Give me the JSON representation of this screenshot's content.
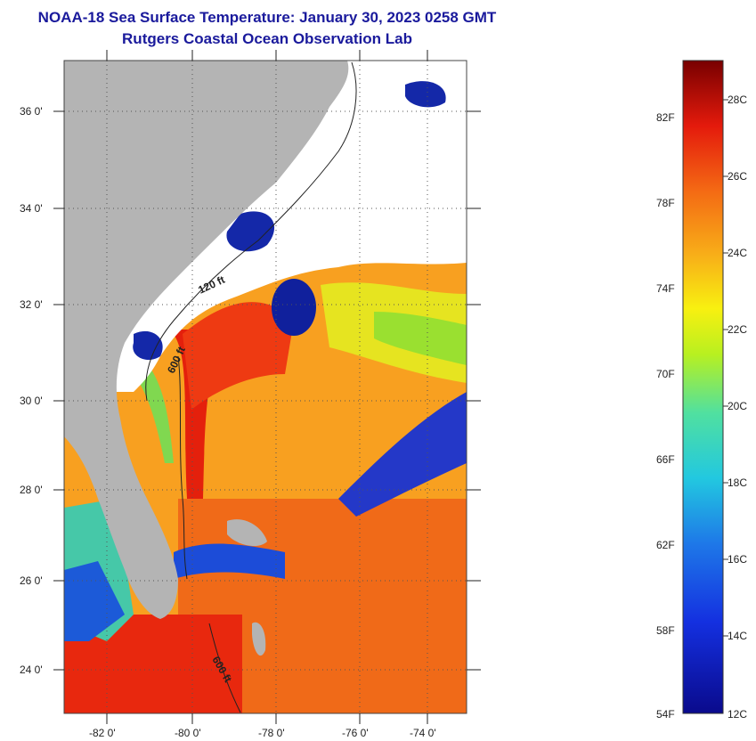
{
  "title_line1": "NOAA-18 Sea Surface Temperature:  January 30, 2023 0258 GMT",
  "title_line2": "Rutgers Coastal Ocean Observation Lab",
  "lat_labels": [
    "36 0'",
    "34 0'",
    "32 0'",
    "30 0'",
    "28 0'",
    "26 0'",
    "24 0'"
  ],
  "lon_labels": [
    "-82 0'",
    "-80 0'",
    "-78 0'",
    "-76 0'",
    "-74 0'"
  ],
  "contours": [
    {
      "label": "120 ft"
    },
    {
      "label": "600 ft"
    },
    {
      "label": "600 ft"
    }
  ],
  "colorbar": {
    "fahrenheit": [
      "82F",
      "78F",
      "74F",
      "70F",
      "66F",
      "62F",
      "58F",
      "54F"
    ],
    "celsius": [
      "28C",
      "26C",
      "24C",
      "22C",
      "20C",
      "18C",
      "16C",
      "14C",
      "12C"
    ]
  },
  "colors": {
    "land": "#b4b4b4",
    "cloud": "#ffffff",
    "title": "#1a1a9c",
    "ocean_warm": "#f03a14",
    "ocean_mid": "#f8a018",
    "ocean_cool": "#1a2ab8"
  }
}
